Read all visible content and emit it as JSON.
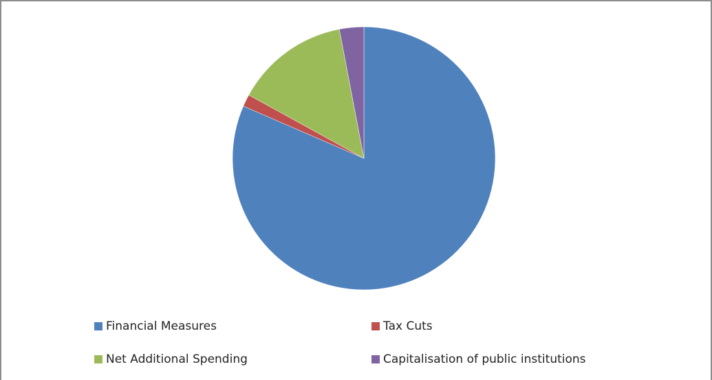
{
  "chart_data": {
    "type": "pie",
    "categories": [
      "Financial Measures",
      "Tax Cuts",
      "Net Additional Spending",
      "Capitalisation of public institutions"
    ],
    "values": [
      81.5,
      1.5,
      14,
      3
    ],
    "colors": [
      "#4f81bd",
      "#c0504d",
      "#9bbb59",
      "#8064a2"
    ],
    "legend": "bottom"
  }
}
